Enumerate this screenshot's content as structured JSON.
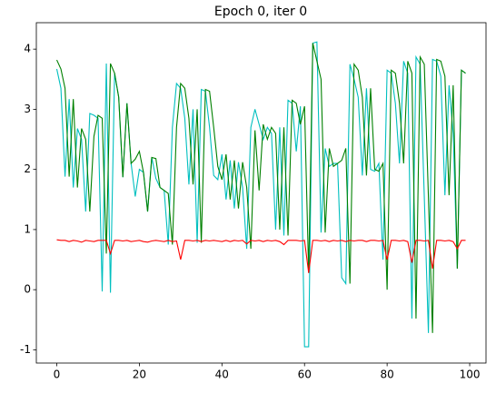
{
  "chart_data": {
    "type": "line",
    "title": "Epoch 0, iter 0",
    "x": [
      0,
      1,
      2,
      3,
      4,
      5,
      6,
      7,
      8,
      9,
      10,
      11,
      12,
      13,
      14,
      15,
      16,
      17,
      18,
      19,
      20,
      21,
      22,
      23,
      24,
      25,
      26,
      27,
      28,
      29,
      30,
      31,
      32,
      33,
      34,
      35,
      36,
      37,
      38,
      39,
      40,
      41,
      42,
      43,
      44,
      45,
      46,
      47,
      48,
      49,
      50,
      51,
      52,
      53,
      54,
      55,
      56,
      57,
      58,
      59,
      60,
      61,
      62,
      63,
      64,
      65,
      66,
      67,
      68,
      69,
      70,
      71,
      72,
      73,
      74,
      75,
      76,
      77,
      78,
      79,
      80,
      81,
      82,
      83,
      84,
      85,
      86,
      87,
      88,
      89,
      90,
      91,
      92,
      93,
      94,
      95,
      96,
      97,
      98,
      99
    ],
    "series": [
      {
        "color": "#00bfbf",
        "values": [
          3.67,
          3.35,
          1.88,
          3.17,
          1.7,
          2.68,
          2.5,
          1.3,
          2.93,
          2.9,
          2.85,
          -0.03,
          3.76,
          -0.05,
          3.6,
          3.2,
          1.87,
          3.1,
          2.1,
          1.55,
          2.0,
          1.95,
          1.3,
          2.2,
          1.85,
          1.7,
          1.65,
          0.75,
          2.7,
          3.43,
          3.35,
          2.85,
          1.75,
          3.0,
          0.78,
          3.33,
          3.3,
          2.7,
          1.9,
          1.83,
          2.25,
          1.5,
          2.15,
          1.35,
          2.12,
          1.7,
          0.68,
          2.7,
          3.0,
          2.75,
          2.5,
          2.7,
          2.6,
          1.0,
          2.7,
          0.9,
          3.15,
          3.1,
          2.3,
          3.05,
          -0.95,
          -0.95,
          4.1,
          4.12,
          0.95,
          2.35,
          2.05,
          2.1,
          2.1,
          0.2,
          0.1,
          3.75,
          3.5,
          3.2,
          1.9,
          3.35,
          2.0,
          1.97,
          2.1,
          0.5,
          3.65,
          3.6,
          3.1,
          2.1,
          3.8,
          3.6,
          -0.48,
          3.87,
          3.75,
          1.55,
          -0.72,
          3.83,
          3.8,
          3.55,
          1.57,
          3.4,
          2.6,
          0.35,
          3.65,
          3.6
        ]
      },
      {
        "color": "#008000",
        "values": [
          3.82,
          3.67,
          3.35,
          1.88,
          3.17,
          1.7,
          2.68,
          2.5,
          1.3,
          2.55,
          2.9,
          2.85,
          0.6,
          3.76,
          3.6,
          3.2,
          1.87,
          3.1,
          2.1,
          2.17,
          2.3,
          1.95,
          1.3,
          2.2,
          2.18,
          1.7,
          1.65,
          1.6,
          0.75,
          2.7,
          3.43,
          3.35,
          2.85,
          1.75,
          3.0,
          0.78,
          3.33,
          3.3,
          2.7,
          2.05,
          1.83,
          2.25,
          1.5,
          2.15,
          1.35,
          2.12,
          1.7,
          0.68,
          2.65,
          1.65,
          2.75,
          2.5,
          2.7,
          2.6,
          1.0,
          2.7,
          0.9,
          3.15,
          3.1,
          2.75,
          3.05,
          0.28,
          4.1,
          3.8,
          3.5,
          0.95,
          2.35,
          2.05,
          2.1,
          2.15,
          2.35,
          0.1,
          3.75,
          3.65,
          3.2,
          1.9,
          3.35,
          2.0,
          1.97,
          2.1,
          0.0,
          3.65,
          3.6,
          3.1,
          2.1,
          3.8,
          3.6,
          -0.48,
          3.87,
          3.75,
          1.55,
          -0.72,
          3.83,
          3.8,
          3.55,
          1.57,
          3.4,
          0.35,
          3.65,
          3.6
        ]
      },
      {
        "color": "#ff0000",
        "values": [
          0.83,
          0.82,
          0.82,
          0.8,
          0.82,
          0.81,
          0.79,
          0.82,
          0.81,
          0.8,
          0.82,
          0.82,
          0.82,
          0.6,
          0.82,
          0.82,
          0.81,
          0.82,
          0.8,
          0.81,
          0.82,
          0.8,
          0.79,
          0.81,
          0.82,
          0.81,
          0.8,
          0.82,
          0.8,
          0.81,
          0.5,
          0.82,
          0.82,
          0.81,
          0.82,
          0.8,
          0.82,
          0.81,
          0.82,
          0.81,
          0.8,
          0.82,
          0.8,
          0.82,
          0.81,
          0.82,
          0.76,
          0.82,
          0.81,
          0.82,
          0.8,
          0.82,
          0.81,
          0.82,
          0.8,
          0.75,
          0.82,
          0.82,
          0.82,
          0.81,
          0.82,
          0.28,
          0.82,
          0.82,
          0.81,
          0.82,
          0.8,
          0.82,
          0.81,
          0.82,
          0.8,
          0.82,
          0.81,
          0.82,
          0.82,
          0.8,
          0.82,
          0.82,
          0.81,
          0.82,
          0.5,
          0.82,
          0.82,
          0.81,
          0.82,
          0.8,
          0.45,
          0.82,
          0.82,
          0.81,
          0.82,
          0.35,
          0.82,
          0.82,
          0.81,
          0.82,
          0.8,
          0.68,
          0.82,
          0.82
        ]
      }
    ],
    "xlim": [
      -4.95,
      103.95
    ],
    "xticks": [
      0,
      20,
      40,
      60,
      80,
      100
    ],
    "ylim": [
      -1.22,
      4.44
    ],
    "yticks": [
      -1,
      0,
      1,
      2,
      3,
      4
    ]
  }
}
